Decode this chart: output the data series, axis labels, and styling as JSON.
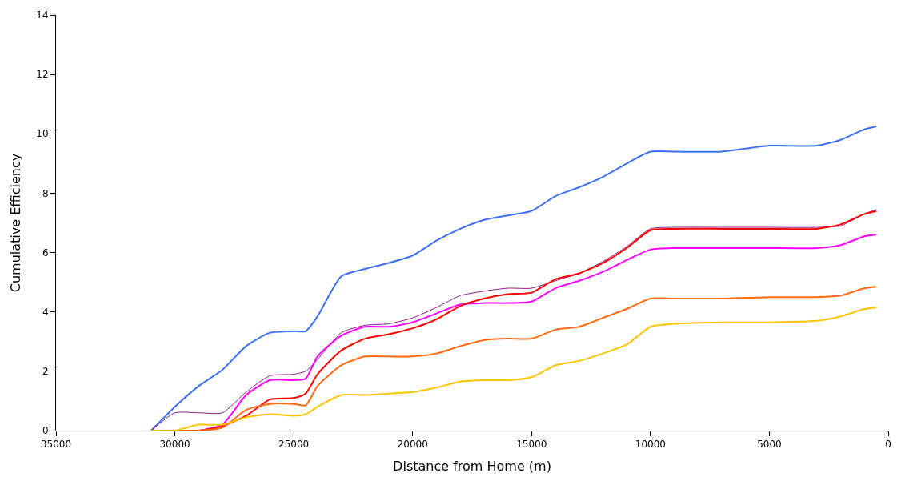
{
  "chart_data": {
    "type": "line",
    "xlabel": "Distance from Home (m)",
    "ylabel": "Cumulative Efficiency",
    "x": [
      31000,
      30000,
      29000,
      28000,
      27000,
      26000,
      25000,
      24500,
      24000,
      23000,
      22000,
      21000,
      20000,
      19000,
      18000,
      17000,
      16000,
      15000,
      14000,
      13000,
      12000,
      11000,
      10000,
      9000,
      7000,
      5000,
      3000,
      2000,
      1000,
      500
    ],
    "series": [
      {
        "color": "#3d6ff5",
        "values": [
          0,
          0.8,
          1.5,
          2.05,
          2.85,
          3.3,
          3.35,
          3.35,
          3.85,
          5.2,
          5.45,
          5.65,
          5.9,
          6.4,
          6.8,
          7.1,
          7.25,
          7.4,
          7.9,
          8.2,
          8.55,
          9.0,
          9.4,
          9.4,
          9.4,
          9.6,
          9.6,
          9.8,
          10.15,
          10.25
        ]
      },
      {
        "color": "#8b1a8b",
        "values": [
          0,
          0.6,
          0.6,
          0.6,
          1.3,
          1.85,
          1.9,
          2.0,
          2.4,
          3.3,
          3.55,
          3.6,
          3.8,
          4.15,
          4.55,
          4.7,
          4.8,
          4.8,
          5.05,
          5.3,
          5.7,
          6.2,
          6.8,
          6.85,
          6.85,
          6.85,
          6.85,
          6.9,
          7.3,
          7.45
        ]
      },
      {
        "color": "#ff00ff",
        "values": [
          0,
          0,
          0,
          0.2,
          1.2,
          1.7,
          1.7,
          1.75,
          2.5,
          3.2,
          3.5,
          3.5,
          3.65,
          3.95,
          4.25,
          4.3,
          4.3,
          4.35,
          4.8,
          5.05,
          5.35,
          5.75,
          6.1,
          6.15,
          6.15,
          6.15,
          6.15,
          6.25,
          6.55,
          6.6
        ]
      },
      {
        "color": "#ff0000",
        "values": [
          0,
          0,
          0,
          0.15,
          0.5,
          1.05,
          1.1,
          1.25,
          1.9,
          2.7,
          3.1,
          3.25,
          3.45,
          3.75,
          4.2,
          4.45,
          4.6,
          4.65,
          5.1,
          5.3,
          5.65,
          6.15,
          6.75,
          6.8,
          6.8,
          6.8,
          6.8,
          6.95,
          7.3,
          7.4
        ]
      },
      {
        "color": "#ff6a10",
        "values": [
          0,
          0,
          0,
          0.1,
          0.7,
          0.9,
          0.9,
          0.85,
          1.5,
          2.2,
          2.5,
          2.5,
          2.5,
          2.6,
          2.85,
          3.05,
          3.1,
          3.1,
          3.4,
          3.5,
          3.8,
          4.1,
          4.45,
          4.45,
          4.45,
          4.5,
          4.5,
          4.55,
          4.8,
          4.85
        ]
      },
      {
        "color": "#ffc400",
        "values": [
          0,
          0,
          0.2,
          0.2,
          0.45,
          0.55,
          0.5,
          0.55,
          0.8,
          1.2,
          1.2,
          1.25,
          1.3,
          1.45,
          1.65,
          1.7,
          1.7,
          1.8,
          2.2,
          2.35,
          2.6,
          2.9,
          3.5,
          3.6,
          3.65,
          3.65,
          3.7,
          3.85,
          4.1,
          4.15
        ]
      }
    ],
    "xlim": [
      35000,
      0
    ],
    "xticks": [
      35000,
      30000,
      25000,
      20000,
      15000,
      10000,
      5000,
      0
    ],
    "ylim": [
      0,
      14
    ],
    "yticks": [
      0,
      2,
      4,
      6,
      8,
      10,
      12,
      14
    ],
    "marker": "none",
    "line_style": "solid"
  }
}
